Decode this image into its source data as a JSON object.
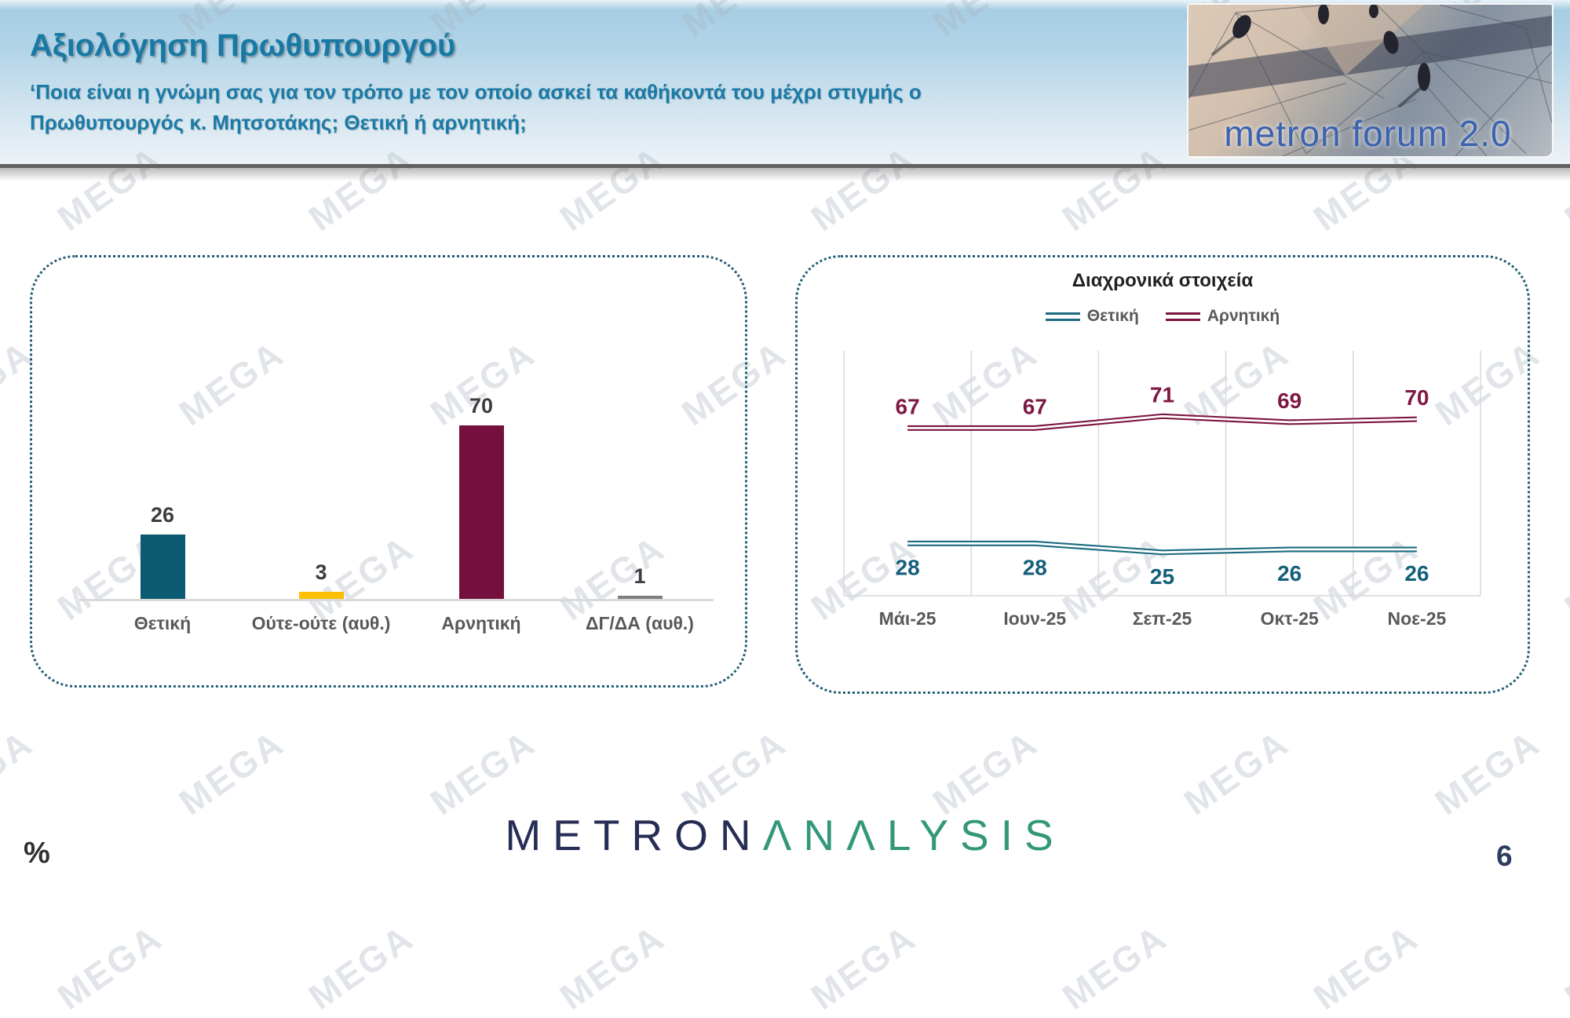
{
  "header": {
    "title": "Αξιολόγηση Πρωθυπουργού",
    "subtitle_line1": "‘Ποια είναι η γνώμη σας για τον τρόπο με τον οποίο ασκεί τα καθήκοντά του μέχρι στιγμής ο",
    "subtitle_line2": "Πρωθυπουργός κ. Μητσοτάκης; Θετική ή αρνητική;",
    "logo_text": "metron forum 2.0"
  },
  "watermark": {
    "text": "MEGA"
  },
  "footer": {
    "percent_label": "%",
    "page_number": "6",
    "brand_part1": "METRON",
    "brand_part2": "ΛNΛLYSIS"
  },
  "colors": {
    "header_text": "#1879a4",
    "panel_border": "#235f75",
    "axis_gray": "#d9d9d9",
    "value_label": "#3d3d3d",
    "category_label": "#595959"
  },
  "chart_data": [
    {
      "type": "bar",
      "title": "",
      "categories": [
        "Θετική",
        "Ούτε-ούτε (αυθ.)",
        "Αρνητική",
        "ΔΓ/ΔΑ (αυθ.)"
      ],
      "values": [
        26,
        3,
        70,
        1
      ],
      "bar_colors": [
        "#0b5a71",
        "#febf00",
        "#740f3e",
        "#7f7f7f"
      ],
      "unit": "%",
      "ylim": [
        0,
        100
      ],
      "grid": false
    },
    {
      "type": "line",
      "title": "Διαχρονικά στοιχεία",
      "categories": [
        "Μάι-25",
        "Ιουν-25",
        "Σεπ-25",
        "Οκτ-25",
        "Νοε-25"
      ],
      "series": [
        {
          "name": "Θετική",
          "color": "#1c6a80",
          "label_color": "#14607a",
          "label_position": "below",
          "values": [
            28,
            28,
            25,
            26,
            26
          ]
        },
        {
          "name": "Αρνητική",
          "color": "#7b1440",
          "label_color": "#7e1843",
          "label_position": "above",
          "values": [
            67,
            67,
            71,
            69,
            70
          ]
        }
      ],
      "legend_position": "top",
      "grid": "vertical",
      "ylim": [
        0,
        100
      ]
    }
  ]
}
